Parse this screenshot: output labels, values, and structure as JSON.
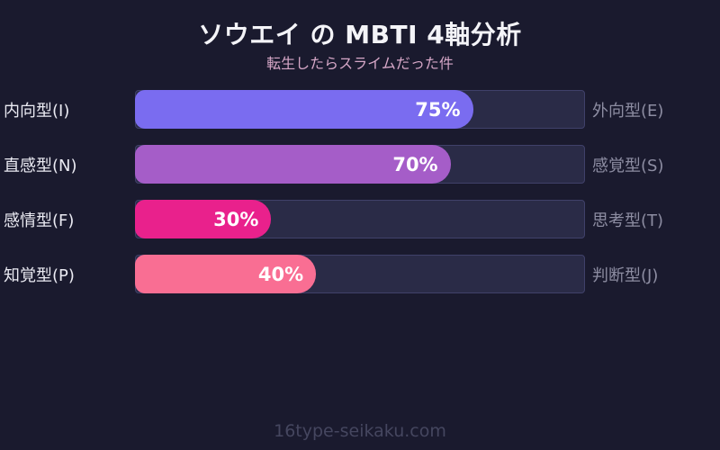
{
  "header": {
    "title": "ソウエイ の MBTI 4軸分析",
    "subtitle": "転生したらスライムだった件"
  },
  "footer": {
    "site": "16type-seikaku.com"
  },
  "colors": {
    "background": "#1a1a2e",
    "title_text": "#f4f4f8",
    "subtitle_text": "#d6a7c7",
    "left_label_text": "#eaeaf2",
    "right_label_text": "#8d8da2",
    "track_background": "#2a2b47",
    "track_border": "#40416a",
    "value_text": "#ffffff",
    "footer_text": "#45465f"
  },
  "chart_data": {
    "type": "bar",
    "title": "ソウエイ の MBTI 4軸分析",
    "subtitle": "転生したらスライムだった件",
    "orientation": "horizontal",
    "xlim": [
      0,
      100
    ],
    "grid": false,
    "legend": false,
    "axes": [
      {
        "left_label": "内向型(I)",
        "right_label": "外向型(E)",
        "value": 75,
        "value_label": "75%",
        "color": "#7a6cf0"
      },
      {
        "left_label": "直感型(N)",
        "right_label": "感覚型(S)",
        "value": 70,
        "value_label": "70%",
        "color": "#a55dc8"
      },
      {
        "left_label": "感情型(F)",
        "right_label": "思考型(T)",
        "value": 30,
        "value_label": "30%",
        "color": "#e9218c"
      },
      {
        "left_label": "知覚型(P)",
        "right_label": "判断型(J)",
        "value": 40,
        "value_label": "40%",
        "color": "#f96e93"
      }
    ]
  }
}
